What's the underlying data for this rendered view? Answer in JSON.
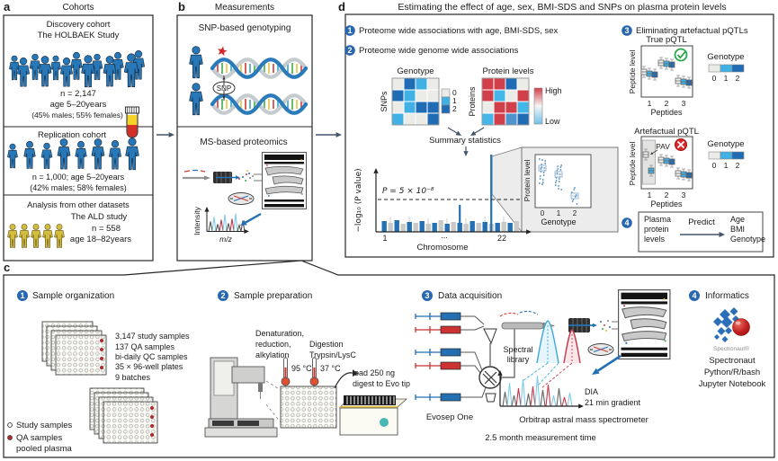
{
  "panel_a": {
    "label": "a",
    "title": "Cohorts",
    "discovery": {
      "line1": "Discovery cohort",
      "line2": "The HOLBAEK Study",
      "n": "n = 2,147",
      "age": "age 5–20years",
      "sex": "(45% males; 55% females)"
    },
    "replication": {
      "title": "Replication cohort",
      "n_age": "n = 1,000; age 5–20years",
      "sex": "(42% males; 58% females)"
    },
    "other": {
      "title": "Analysis from other datasets",
      "study": "The ALD study",
      "n": "n = 558",
      "age": "age 18–82years"
    }
  },
  "panel_b": {
    "label": "b",
    "title": "Measurements",
    "genotyping": "SNP-based genotyping",
    "snp": "SNP",
    "proteomics": "MS-based proteomics",
    "intensity": "Intensity",
    "mz": "m/z"
  },
  "panel_d": {
    "label": "d",
    "title": "Estimating the effect of age, sex, BMI-SDS and SNPs on plasma protein levels",
    "step1": "Proteome wide associations with age, BMI-SDS, sex",
    "step2": "Proteome wide genome wide associations",
    "step3": "Eliminating artefactual pQTLs",
    "genotype_matrix": {
      "title": "Genotype",
      "ylabel": "SNPs",
      "legend": [
        "0",
        "1",
        "2"
      ],
      "cells": [
        [
          0,
          2,
          1,
          0
        ],
        [
          2,
          1,
          0,
          0
        ],
        [
          0,
          1,
          2,
          2
        ],
        [
          1,
          0,
          0,
          2
        ]
      ]
    },
    "protein_matrix": {
      "title": "Protein levels",
      "ylabel": "Proteins",
      "high": "High",
      "low": "Low",
      "cells": [
        [
          "r",
          "r",
          "b",
          "w"
        ],
        [
          "r",
          "c",
          "w",
          "r"
        ],
        [
          "w",
          "r",
          "r",
          "c"
        ],
        [
          "c",
          "r",
          "m",
          "b"
        ]
      ]
    },
    "summary": "Summary statistics",
    "manhattan": {
      "ylabel": "−log₁₀ (P value)",
      "threshold": "P = 5 × 10⁻⁸",
      "xlabel": "Chromosome",
      "tick_first": "1",
      "tick_mid": "...",
      "tick_last": "22",
      "bases": [
        12,
        10,
        13,
        9,
        11,
        10,
        12,
        9,
        10,
        13,
        9,
        11,
        10,
        9,
        12,
        10,
        11,
        9,
        10,
        11,
        10,
        12
      ],
      "spikes": {
        "12": 30,
        "17": 86
      }
    },
    "inset": {
      "ylabel": "Protein level",
      "xlabel": "Genotype",
      "ticks": [
        "0",
        "1",
        "2"
      ]
    },
    "true_pqtl": {
      "title": "True pQTL",
      "ylabel": "Peptide level",
      "xlabel": "Peptides",
      "ticks": [
        "1",
        "2",
        "3"
      ],
      "legend_title": "Genotype",
      "legend_ticks": [
        "0",
        "1",
        "2"
      ]
    },
    "artefactual_pqtl": {
      "title": "Artefactual pQTL",
      "pav": "PAV",
      "ylabel": "Peptide level",
      "xlabel": "Peptides",
      "ticks": [
        "1",
        "2",
        "3"
      ],
      "legend_title": "Genotype",
      "legend_ticks": [
        "0",
        "1",
        "2"
      ]
    },
    "step4": {
      "input": [
        "Plasma",
        "protein",
        "levels"
      ],
      "predict": "Predict",
      "outputs": [
        "Age",
        "BMI",
        "Genotype"
      ]
    }
  },
  "panel_c": {
    "label": "c",
    "s1": {
      "num": "1",
      "title": "Sample organization",
      "lines": [
        "3,147 study samples",
        "137 QA samples",
        "bi-daily QC samples",
        "35 × 96-well plates",
        "9 batches"
      ],
      "legend_study": "Study samples",
      "legend_qa": "QA samples",
      "legend_qa2": "pooled plasma"
    },
    "s2": {
      "num": "2",
      "title": "Sample preparation",
      "denat": [
        "Denaturation,",
        "reduction,",
        "alkylation"
      ],
      "digest": [
        "Digestion",
        "Trypsin/LysC"
      ],
      "temp1": "95 °C",
      "temp2": "37 °C",
      "load": [
        "load 250 ng",
        "digest to Evo tip"
      ]
    },
    "s3": {
      "num": "3",
      "title": "Data acquisition",
      "evosep": "Evosep One",
      "spectral": [
        "Spectral",
        "library"
      ],
      "dia": "DIA",
      "gradient": "21 min gradient",
      "instrument": "Orbitrap astral mass spectrometer",
      "time": "2.5 month measurement time"
    },
    "s4": {
      "num": "4",
      "title": "Informatics",
      "logo": "Spectronaut®",
      "lines": [
        "Spectronaut",
        "Python/R/bash",
        "Jupyter Notebook"
      ]
    }
  }
}
